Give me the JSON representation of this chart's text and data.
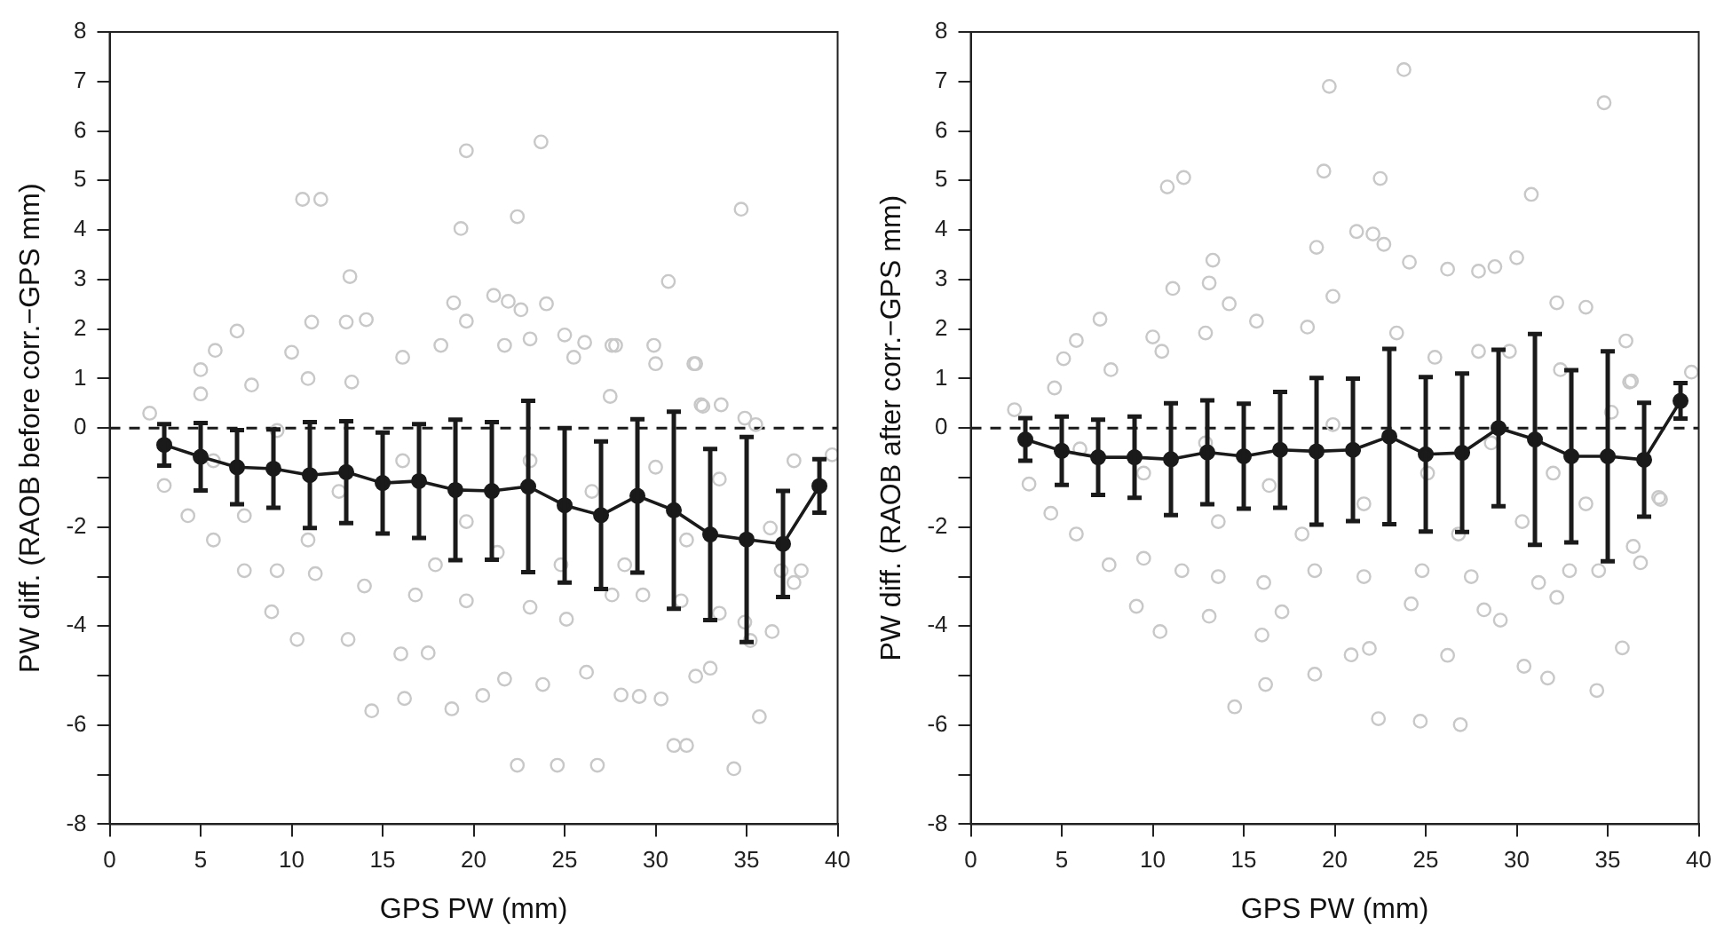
{
  "chart_data": [
    {
      "type": "scatter",
      "xlabel": "GPS PW (mm)",
      "ylabel": "PW diff. (RAOB before corr.−GPS mm)",
      "xlim": [
        0,
        40
      ],
      "xticks": [
        0,
        5,
        10,
        15,
        20,
        25,
        30,
        35,
        40
      ],
      "ylim": [
        -8,
        8
      ],
      "yticks": [
        -8,
        {
          "value": -7,
          "label": null
        },
        -6,
        {
          "value": -5,
          "label": null
        },
        -4,
        {
          "value": -3,
          "label": null
        },
        -2,
        {
          "value": -1,
          "label": null
        },
        0,
        1,
        2,
        3,
        4,
        5,
        6,
        7,
        8
      ],
      "grid": false,
      "legend": false,
      "ref_lines": [
        {
          "axis": "y",
          "value": 0,
          "color": "#1a1a1a",
          "line_style": "dashed"
        }
      ],
      "series": [
        {
          "type": "scatter",
          "marker": "circle",
          "color": "#c8c8c8",
          "x": [
            10.6,
            11.6,
            19.6,
            23.7,
            19.3,
            22.4,
            34.7,
            13.2,
            30.7,
            18.9,
            21.1,
            21.9,
            22.6,
            24.0,
            7.0,
            11.1,
            13.0,
            14.1,
            5.8,
            5.0,
            10.0,
            25.0,
            26.1,
            27.8,
            29.9,
            32.2,
            27.5,
            32.5,
            33.6,
            35.5,
            14.4,
            16.2,
            18.8,
            22.4,
            24.6,
            26.8,
            31.0,
            31.7,
            34.3,
            35.7,
            8.9,
            10.3,
            13.1,
            16.0,
            17.5,
            20.5,
            21.7,
            23.8,
            26.2,
            28.1,
            29.1,
            30.3,
            32.2,
            33.0,
            34.9,
            36.4,
            37.6,
            39.7,
            2.2,
            3.0,
            4.3,
            5.7,
            7.4,
            9.2,
            11.3,
            14.0,
            16.8,
            19.6,
            23.1,
            25.1,
            27.6,
            29.3,
            31.4,
            33.5,
            35.2,
            36.9,
            36.3,
            5.0,
            7.8,
            10.9,
            13.3,
            16.1,
            18.2,
            19.6,
            21.7,
            23.1,
            25.5,
            27.6,
            30.0,
            32.1,
            32.6,
            34.9,
            37.6,
            38.0,
            5.7,
            9.2,
            12.6,
            16.1,
            19.6,
            23.1,
            26.5,
            30.0,
            33.5,
            21.3,
            17.9,
            10.9,
            7.4,
            24.8,
            28.3,
            31.7
          ],
          "values": [
            4.62,
            4.62,
            5.6,
            5.78,
            4.03,
            4.27,
            4.42,
            3.06,
            2.96,
            2.53,
            2.68,
            2.56,
            2.39,
            2.51,
            1.96,
            2.14,
            2.14,
            2.19,
            1.57,
            1.18,
            1.53,
            1.88,
            1.73,
            1.67,
            1.67,
            1.3,
            0.64,
            0.47,
            0.47,
            0.07,
            -5.71,
            -5.46,
            -5.67,
            -6.81,
            -6.81,
            -6.81,
            -6.41,
            -6.41,
            -6.88,
            -5.83,
            -3.71,
            -4.27,
            -4.27,
            -4.56,
            -4.54,
            -5.4,
            -5.07,
            -5.18,
            -4.93,
            -5.39,
            -5.42,
            -5.47,
            -5.01,
            -4.85,
            -3.92,
            -4.11,
            -3.12,
            -0.54,
            0.3,
            -1.16,
            -1.77,
            -2.26,
            -2.88,
            -2.88,
            -2.94,
            -3.19,
            -3.37,
            -3.49,
            -3.62,
            -3.86,
            -3.37,
            -3.37,
            -3.49,
            -3.74,
            -4.29,
            -2.88,
            -2.02,
            0.69,
            0.87,
            1.0,
            0.93,
            1.43,
            1.67,
            2.16,
            1.67,
            1.8,
            1.43,
            1.67,
            1.3,
            1.3,
            0.44,
            0.2,
            -0.66,
            -2.88,
            -0.66,
            -0.05,
            -1.28,
            -0.66,
            -1.89,
            -0.66,
            -1.28,
            -0.79,
            -1.03,
            -2.51,
            -2.76,
            -2.26,
            -1.77,
            -2.76,
            -2.76,
            -2.26
          ]
        },
        {
          "type": "line",
          "marker": "circle",
          "color": "#1a1a1a",
          "line_style": "solid",
          "x": [
            3,
            5,
            7,
            9,
            11,
            13,
            15,
            17,
            19,
            21,
            23,
            25,
            27,
            29,
            31,
            33,
            35,
            37,
            39
          ],
          "values": [
            -0.34,
            -0.58,
            -0.79,
            -0.82,
            -0.95,
            -0.89,
            -1.11,
            -1.07,
            -1.25,
            -1.27,
            -1.18,
            -1.56,
            -1.76,
            -1.37,
            -1.66,
            -2.15,
            -2.25,
            -2.34,
            -1.17
          ],
          "errors": [
            0.42,
            0.68,
            0.75,
            0.79,
            1.07,
            1.03,
            1.02,
            1.15,
            1.42,
            1.39,
            1.73,
            1.56,
            1.49,
            1.55,
            1.99,
            1.73,
            2.07,
            1.07,
            0.54
          ]
        }
      ]
    },
    {
      "type": "scatter",
      "xlabel": "GPS PW (mm)",
      "ylabel": "PW diff. (RAOB after corr.−GPS mm)",
      "xlim": [
        0,
        40
      ],
      "xticks": [
        0,
        5,
        10,
        15,
        20,
        25,
        30,
        35,
        40
      ],
      "ylim": [
        -8,
        8
      ],
      "yticks": [
        -8,
        {
          "value": -7,
          "label": null
        },
        -6,
        {
          "value": -5,
          "label": null
        },
        -4,
        {
          "value": -3,
          "label": null
        },
        -2,
        {
          "value": -1,
          "label": null
        },
        0,
        1,
        2,
        3,
        4,
        5,
        6,
        7,
        8
      ],
      "grid": false,
      "legend": false,
      "ref_lines": [
        {
          "axis": "y",
          "value": 0,
          "color": "#1a1a1a",
          "line_style": "dashed"
        }
      ],
      "series": [
        {
          "type": "scatter",
          "marker": "circle",
          "color": "#c8c8c8",
          "x": [
            23.8,
            19.7,
            34.8,
            19.4,
            22.5,
            10.8,
            11.7,
            30.8,
            19.0,
            21.2,
            22.1,
            22.7,
            13.3,
            11.1,
            13.1,
            14.2,
            7.1,
            5.8,
            5.1,
            10.0,
            24.1,
            26.2,
            27.9,
            28.8,
            30.0,
            32.2,
            33.8,
            36.0,
            36.3,
            39.6,
            2.4,
            14.5,
            16.2,
            18.9,
            22.4,
            24.7,
            26.9,
            30.4,
            31.7,
            34.4,
            35.8,
            9.1,
            10.4,
            13.1,
            16.0,
            17.1,
            20.9,
            21.9,
            24.2,
            26.2,
            28.2,
            29.1,
            32.2,
            36.4,
            36.8,
            37.9,
            3.2,
            4.4,
            5.8,
            7.6,
            9.5,
            11.6,
            13.6,
            16.1,
            18.9,
            21.6,
            24.8,
            27.5,
            31.2,
            32.9,
            34.5,
            37.8,
            4.6,
            7.7,
            10.5,
            12.9,
            15.7,
            18.5,
            19.9,
            23.4,
            25.5,
            27.9,
            29.6,
            32.4,
            35.2,
            36.2,
            6.0,
            9.5,
            12.9,
            16.4,
            19.9,
            21.6,
            25.1,
            28.6,
            32.0,
            33.8,
            13.6,
            18.2,
            26.8,
            30.3
          ],
          "values": [
            7.24,
            6.9,
            6.57,
            5.19,
            5.04,
            4.87,
            5.06,
            4.72,
            3.65,
            3.97,
            3.92,
            3.71,
            3.39,
            2.82,
            2.93,
            2.51,
            2.2,
            1.77,
            1.4,
            1.84,
            3.35,
            3.21,
            3.17,
            3.26,
            3.44,
            2.53,
            2.44,
            1.76,
            0.95,
            1.13,
            0.37,
            -5.63,
            -5.18,
            -4.97,
            -5.87,
            -5.92,
            -5.99,
            -4.81,
            -5.05,
            -5.3,
            -4.44,
            -3.6,
            -4.11,
            -3.8,
            -4.18,
            -3.71,
            -4.58,
            -4.45,
            -3.55,
            -4.59,
            -3.67,
            -3.88,
            -3.42,
            -2.39,
            -2.72,
            -1.44,
            -1.13,
            -1.72,
            -2.14,
            -2.76,
            -2.63,
            -2.88,
            -3.0,
            -3.12,
            -2.88,
            -3.0,
            -2.88,
            -3.0,
            -3.12,
            -2.88,
            -2.88,
            -1.4,
            0.81,
            1.18,
            1.55,
            1.92,
            2.16,
            2.04,
            2.66,
            1.92,
            1.43,
            1.55,
            1.55,
            1.18,
            0.32,
            0.93,
            -0.42,
            -0.91,
            -0.3,
            -1.16,
            0.07,
            -1.53,
            -0.91,
            -0.3,
            -0.91,
            -1.53,
            -1.89,
            -2.14,
            -2.14,
            -1.89
          ]
        },
        {
          "type": "line",
          "marker": "circle",
          "color": "#1a1a1a",
          "line_style": "solid",
          "x": [
            3,
            5,
            7,
            9,
            11,
            13,
            15,
            17,
            19,
            21,
            23,
            25,
            27,
            29,
            31,
            33,
            35,
            37,
            39
          ],
          "values": [
            -0.23,
            -0.46,
            -0.59,
            -0.59,
            -0.63,
            -0.49,
            -0.57,
            -0.44,
            -0.47,
            -0.44,
            -0.17,
            -0.53,
            -0.5,
            0.0,
            -0.23,
            -0.57,
            -0.57,
            -0.64,
            0.55
          ],
          "errors": [
            0.43,
            0.69,
            0.76,
            0.82,
            1.13,
            1.05,
            1.06,
            1.17,
            1.48,
            1.44,
            1.77,
            1.56,
            1.6,
            1.58,
            2.13,
            1.74,
            2.12,
            1.15,
            0.36
          ]
        }
      ]
    }
  ]
}
